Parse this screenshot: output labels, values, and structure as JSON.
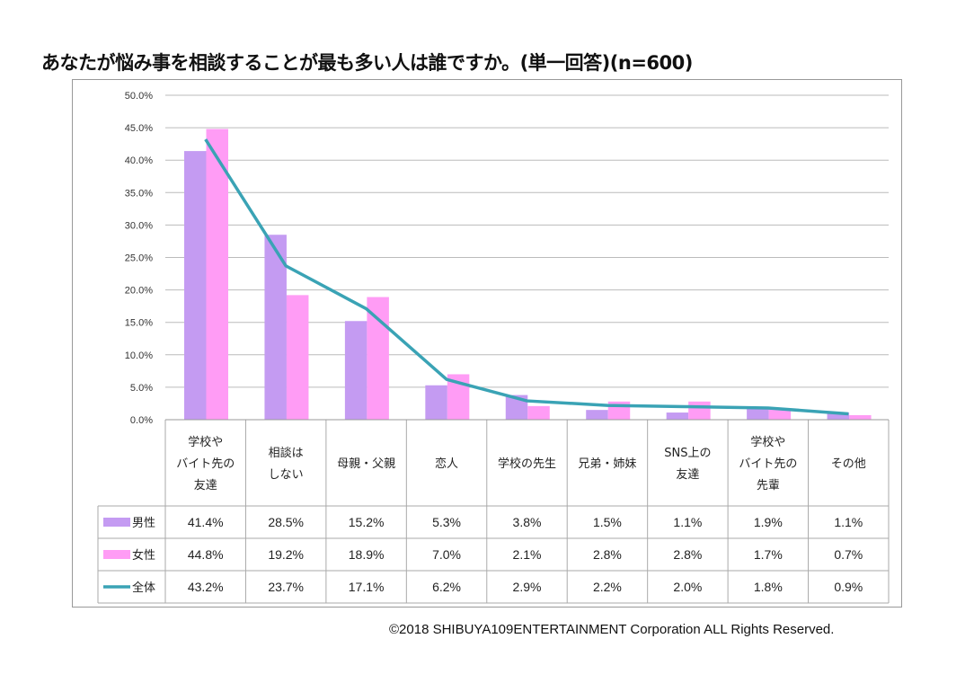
{
  "chart_data": {
    "type": "bar",
    "title": "あなたが悩み事を相談することが最も多い人は誰ですか。(単一回答)(n=600)",
    "xlabel": "",
    "ylabel": "",
    "ylim": [
      0,
      50
    ],
    "yticks": [
      "0.0%",
      "5.0%",
      "10.0%",
      "15.0%",
      "20.0%",
      "25.0%",
      "30.0%",
      "35.0%",
      "40.0%",
      "45.0%",
      "50.0%"
    ],
    "grid": true,
    "categories": [
      [
        "学校や",
        "バイト先の",
        "友達"
      ],
      [
        "相談は",
        "しない"
      ],
      [
        "母親・父親"
      ],
      [
        "恋人"
      ],
      [
        "学校の先生"
      ],
      [
        "兄弟・姉妹"
      ],
      [
        "SNS上の",
        "友達"
      ],
      [
        "学校や",
        "バイト先の",
        "先輩"
      ],
      [
        "その他"
      ]
    ],
    "series": [
      {
        "name": "男性",
        "kind": "bar",
        "color": "#C49BF2",
        "values": [
          41.4,
          28.5,
          15.2,
          5.3,
          3.8,
          1.5,
          1.1,
          1.9,
          1.1
        ],
        "labels": [
          "41.4%",
          "28.5%",
          "15.2%",
          "5.3%",
          "3.8%",
          "1.5%",
          "1.1%",
          "1.9%",
          "1.1%"
        ]
      },
      {
        "name": "女性",
        "kind": "bar",
        "color": "#FF9CF5",
        "values": [
          44.8,
          19.2,
          18.9,
          7.0,
          2.1,
          2.8,
          2.8,
          1.7,
          0.7
        ],
        "labels": [
          "44.8%",
          "19.2%",
          "18.9%",
          "7.0%",
          "2.1%",
          "2.8%",
          "2.8%",
          "1.7%",
          "0.7%"
        ]
      },
      {
        "name": "全体",
        "kind": "line",
        "color": "#3AA3B5",
        "values": [
          43.2,
          23.7,
          17.1,
          6.2,
          2.9,
          2.2,
          2.0,
          1.8,
          0.9
        ],
        "labels": [
          "43.2%",
          "23.7%",
          "17.1%",
          "6.2%",
          "2.9%",
          "2.2%",
          "2.0%",
          "1.8%",
          "0.9%"
        ]
      }
    ],
    "legend": "data-table-left"
  },
  "copyright": "©2018  SHIBUYA109ENTERTAINMENT Corporation  ALL Rights Reserved."
}
